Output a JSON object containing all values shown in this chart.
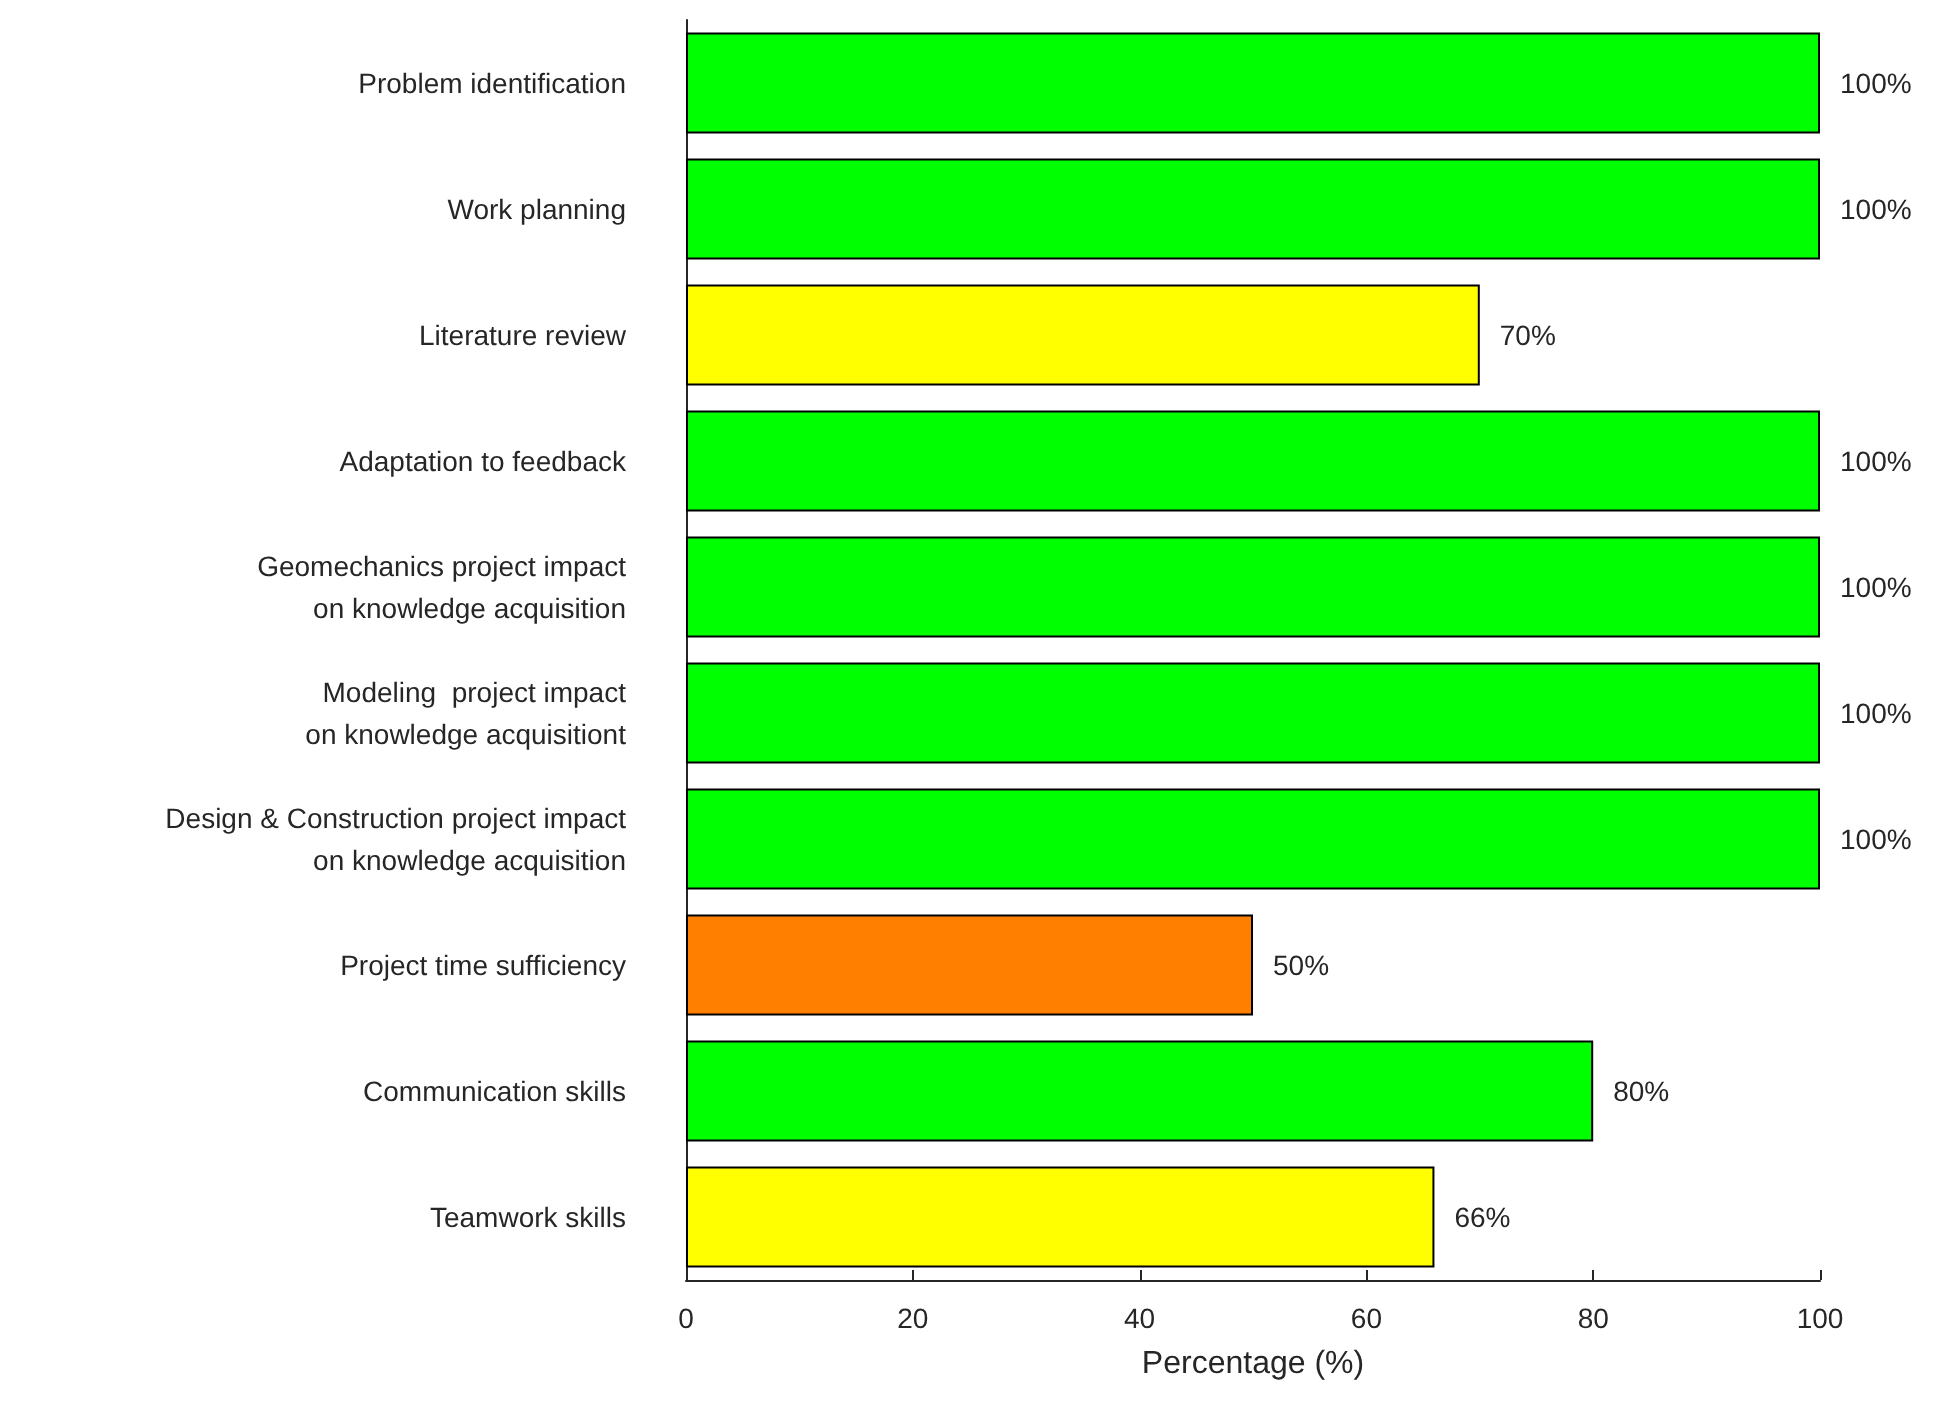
{
  "chart_data": {
    "type": "bar",
    "orientation": "horizontal",
    "xlabel": "Percentage (%)",
    "categories": [
      "Problem identification",
      "Work planning",
      "Literature review",
      "Adaptation to feedback",
      "Geomechanics project impact\non knowledge acquisition",
      "Modeling  project impact\non knowledge acquisitiont",
      "Design & Construction project impact\non knowledge acquisition",
      "Project time sufficiency",
      "Communication skills",
      "Teamwork skills"
    ],
    "values": [
      100,
      100,
      70,
      100,
      100,
      100,
      100,
      50,
      80,
      66
    ],
    "colors": [
      "#00ff00",
      "#00ff00",
      "#ffff00",
      "#00ff00",
      "#00ff00",
      "#00ff00",
      "#00ff00",
      "#ff8000",
      "#00ff00",
      "#ffff00"
    ],
    "value_labels": [
      "100%",
      "100%",
      "70%",
      "100%",
      "100%",
      "100%",
      "100%",
      "50%",
      "80%",
      "66%"
    ],
    "xlim": [
      0,
      100
    ],
    "xticks": [
      0,
      20,
      40,
      60,
      80,
      100
    ]
  }
}
